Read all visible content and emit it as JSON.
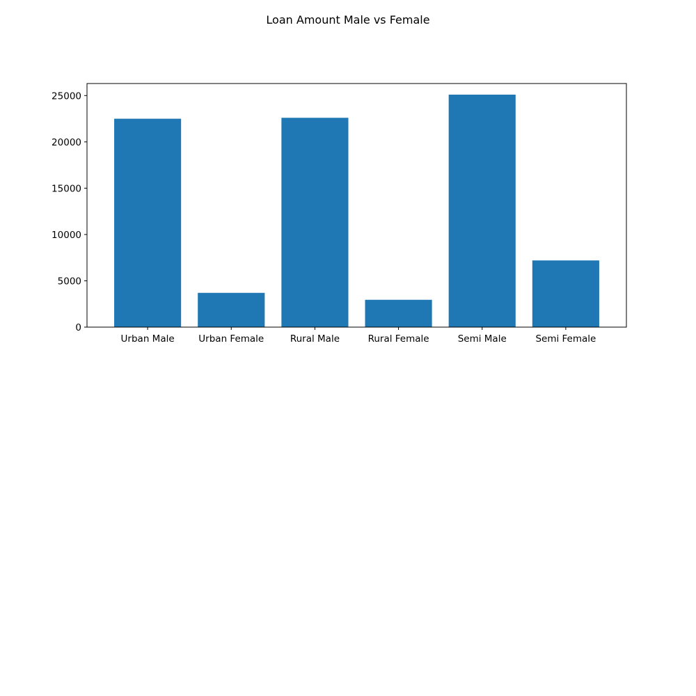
{
  "chart_data": {
    "type": "bar",
    "title": "Loan Amount Male vs Female",
    "xlabel": "",
    "ylabel": "",
    "categories": [
      "Urban Male",
      "Urban Female",
      "Rural Male",
      "Rural Female",
      "Semi Male",
      "Semi Female"
    ],
    "values": [
      22500,
      3700,
      22600,
      2950,
      25100,
      7200
    ],
    "ylim": [
      0,
      26300
    ],
    "yticks": [
      0,
      5000,
      10000,
      15000,
      20000,
      25000
    ],
    "bar_color": "#1f77b4",
    "grid": false,
    "legend": "none"
  }
}
